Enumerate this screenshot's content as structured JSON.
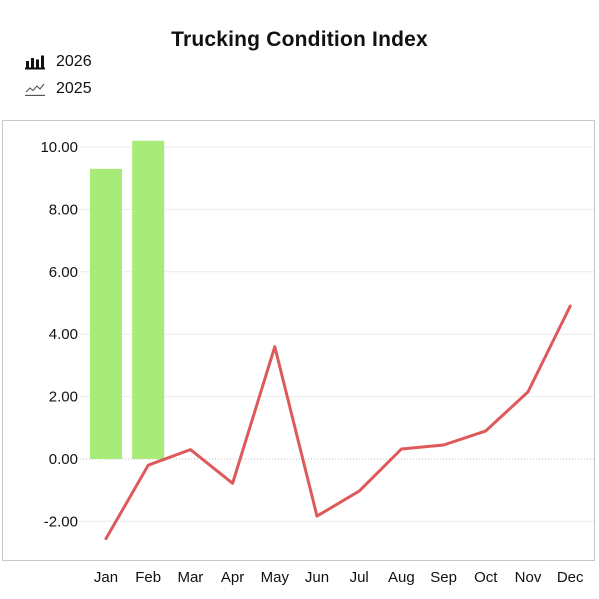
{
  "chart_data": {
    "type": "bar",
    "title": "Trucking Condition Index",
    "categories": [
      "Jan",
      "Feb",
      "Mar",
      "Apr",
      "May",
      "Jun",
      "Jul",
      "Aug",
      "Sep",
      "Oct",
      "Nov",
      "Dec"
    ],
    "series": [
      {
        "name": "2026",
        "type": "bar",
        "color": "#a8eb78",
        "values": [
          9.3,
          10.2,
          null,
          null,
          null,
          null,
          null,
          null,
          null,
          null,
          null,
          null
        ]
      },
      {
        "name": "2025",
        "type": "line",
        "color": "#de5a5a",
        "values": [
          -2.55,
          -0.2,
          0.3,
          -0.78,
          3.6,
          -1.83,
          -1.03,
          0.32,
          0.45,
          0.9,
          2.15,
          4.9
        ]
      }
    ],
    "y_ticks": [
      "10.00",
      "8.00",
      "6.00",
      "4.00",
      "2.00",
      "0.00",
      "-2.00"
    ],
    "ylim": [
      -3.2,
      10.5
    ],
    "xlabel": "",
    "ylabel": "",
    "grid": true,
    "legend_position": "top-left"
  }
}
